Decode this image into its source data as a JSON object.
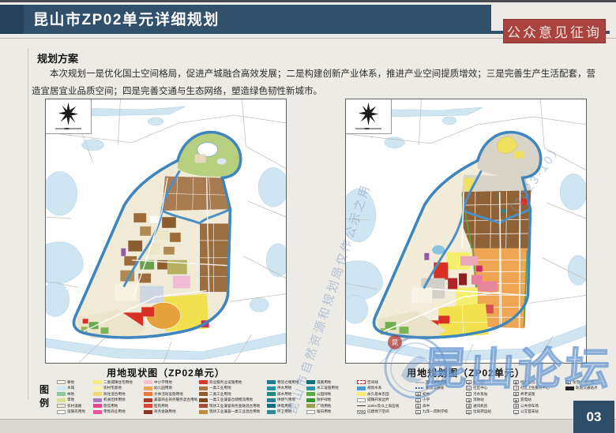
{
  "header": {
    "title": "昆山市ZP02单元详细规划",
    "badge": "公众意见征询"
  },
  "section": {
    "heading": "规划方案",
    "paragraph": "本次规划一是优化国土空间格局，促进产城融合高效发展；二是构建创新产业体系，推进产业空间提质增效；三是完善生产生活配套，营造宜居宜业品质空间；四是完善交通与生态网络，塑造绿色韧性新城市。"
  },
  "maps": {
    "left_caption": "用地现状图（ZP02单元）",
    "right_caption": "用地规划图（ZP02单元）",
    "compass_icon": "wind-rose-north-arrow-with-scale-bar"
  },
  "legend": {
    "label": "图例",
    "left_columns": [
      [
        {
          "type": "fill",
          "c": "#f7f3e0",
          "bd": true,
          "t": "耕地"
        },
        {
          "type": "fill",
          "c": "#cfe6f0",
          "t": "水域"
        },
        {
          "type": "fill",
          "c": "#8cc79e",
          "t": "林地"
        },
        {
          "type": "fill",
          "c": "#d8e494",
          "t": "草地"
        },
        {
          "type": "fill",
          "c": "#efe9d8",
          "bd": true,
          "t": "农村道路"
        },
        {
          "type": "fill",
          "c": "#ffffff",
          "bd": true,
          "t": "设施农用地"
        }
      ],
      [
        {
          "type": "fill",
          "c": "#f5e87f",
          "t": "二类城镇住宅用地"
        },
        {
          "type": "fill",
          "c": "#faf3a9",
          "t": "农村宅基地"
        },
        {
          "type": "fill",
          "c": "#f3d973",
          "t": "商住混合用地"
        },
        {
          "type": "fill",
          "c": "#a97bbd",
          "t": "机关团体用地"
        },
        {
          "type": "fill",
          "c": "#e0488c",
          "t": "旅馆用地"
        },
        {
          "type": "fill",
          "c": "#e8559a",
          "t": "零售商业用地"
        }
      ],
      [
        {
          "type": "fill",
          "c": "#f6bfd2",
          "t": "中小学用地"
        },
        {
          "type": "fill",
          "c": "#f2a45c",
          "t": "幼儿园用地"
        },
        {
          "type": "fill",
          "c": "#e87a3c",
          "t": "文体活动设施用地"
        },
        {
          "type": "fill",
          "c": "#b03a2a",
          "t": "兼容商业商务服务混合用地"
        },
        {
          "type": "fill",
          "c": "#e04438",
          "t": "医院用地"
        },
        {
          "type": "fill",
          "c": "#8c3326",
          "t": "商务金融用地"
        }
      ],
      [
        {
          "type": "fill",
          "c": "#d63a2f",
          "t": "商业服务业设施用地"
        },
        {
          "type": "fill",
          "c": "#aa7648",
          "t": "一类工业用地"
        },
        {
          "type": "fill",
          "c": "#8f5c30",
          "t": "二类工业用地"
        },
        {
          "type": "fill",
          "c": "#7a4a22",
          "t": "一类工业兼容仓储物流用地"
        },
        {
          "type": "fill",
          "c": "#a34d38",
          "t": "现状工业兼容商务金融混合用地"
        },
        {
          "type": "fill",
          "c": "#c08a3e",
          "t": "现状工业兼容一类工业混合用地"
        }
      ],
      [
        {
          "type": "fill",
          "c": "#1d7e8f",
          "t": "物流仓储用地"
        },
        {
          "type": "fill",
          "c": "#27929e",
          "t": "供水用地"
        },
        {
          "type": "fill",
          "c": "#1f8a7d",
          "t": "排水用地"
        },
        {
          "type": "fill",
          "c": "#2b7f93",
          "t": "供燃气用地"
        },
        {
          "type": "fill",
          "c": "#156e80",
          "t": "供电用地"
        },
        {
          "type": "fill",
          "c": "#2d8a8f",
          "t": "环卫用地"
        }
      ],
      [
        {
          "type": "fill",
          "c": "#0f6d7d",
          "t": "道路用地"
        },
        {
          "type": "fill",
          "c": "#3394a6",
          "t": "水工设施用地"
        },
        {
          "type": "fill",
          "c": "#5aa83f",
          "t": "公园绿地"
        },
        {
          "type": "fill",
          "c": "#35962f",
          "t": "防护绿地"
        },
        {
          "type": "fill",
          "c": "#9aa04e",
          "t": "广场用地"
        },
        {
          "type": "fill",
          "c": "#ffffff",
          "bd": true,
          "t": "留白用地"
        }
      ]
    ],
    "right_columns": [
      [
        {
          "type": "dash",
          "t": "空间线"
        },
        {
          "type": "fill",
          "c": "#4a9ad4",
          "t": "规划水系"
        },
        {
          "type": "fill",
          "c": "#f7ea7a",
          "t": "永久基本农田"
        },
        {
          "type": "fill",
          "c": "#ffffff",
          "bd": true,
          "t": "城镇开发边界"
        },
        {
          "type": "line",
          "t": "110kV及以上高压线"
        },
        {
          "type": "hatch",
          "t": "已建地下空间"
        }
      ],
      [
        {
          "type": "dline",
          "t": "现状保留道路"
        },
        {
          "type": "bdash",
          "t": "轨道交通线"
        },
        {
          "type": "icon",
          "code": "中",
          "t": "初中"
        },
        {
          "type": "icon",
          "code": "小",
          "t": "小学"
        },
        {
          "type": "icon",
          "code": "高",
          "t": "高中"
        },
        {
          "type": "icon",
          "code": "九",
          "t": "九年一贯制学校"
        }
      ],
      [
        {
          "type": "icon",
          "code": "幼",
          "t": "幼儿园"
        },
        {
          "type": "icon",
          "code": "社",
          "t": "社区中心"
        },
        {
          "type": "icon",
          "code": "污",
          "t": "污水泵站"
        },
        {
          "type": "icon",
          "code": "消",
          "t": "消防站"
        },
        {
          "type": "icon",
          "code": "通",
          "t": "通讯机房"
        },
        {
          "type": "icon",
          "code": "垃",
          "t": "垃圾转运站"
        }
      ],
      [
        {
          "type": "icon",
          "code": "医",
          "t": "综合医院"
        },
        {
          "type": "icon",
          "code": "卫",
          "t": "社区卫生服务中心"
        },
        {
          "type": "icon",
          "code": "养",
          "t": "养老设施"
        },
        {
          "type": "icon",
          "code": "变",
          "t": "变电站"
        },
        {
          "type": "icon",
          "code": "停",
          "t": "公共停车场"
        },
        {
          "type": "icon",
          "code": "公",
          "t": "公交首末站"
        }
      ],
      [
        {
          "type": "icon",
          "code": "泵",
          "t": "架空（污）线"
        },
        {
          "type": "fill",
          "c": "#222222",
          "t": "轨道交通站点"
        }
      ]
    ]
  },
  "watermarks": {
    "diagonal_text": "昆山市自然资源和规划局仅作公示之用",
    "diagonal_date": "（2023-10）",
    "forum_text": "昆山论坛"
  },
  "page_number": "03",
  "colors": {
    "header_navy": "#31506c",
    "header_dark_block": "#24405a",
    "badge_red": "#a8433f",
    "page_background": "#edebe5",
    "page_number_bg": "#2f4d68",
    "boundary_river_blue": "#3f86bd",
    "outside_water": "#cfe5f2"
  }
}
